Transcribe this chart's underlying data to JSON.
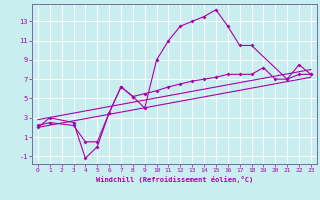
{
  "xlabel": "Windchill (Refroidissement éolien,°C)",
  "bg_color": "#c8eef0",
  "line_color": "#aa00aa",
  "line1_x": [
    0,
    1,
    3,
    4,
    5,
    6,
    7,
    8,
    9,
    10,
    11,
    12,
    13,
    14,
    15,
    16,
    17,
    18,
    21,
    22,
    23
  ],
  "line1_y": [
    2.0,
    3.0,
    2.5,
    -1.2,
    0.0,
    3.5,
    6.2,
    5.2,
    4.0,
    9.0,
    11.0,
    12.5,
    13.0,
    13.5,
    14.2,
    12.5,
    10.5,
    10.5,
    7.0,
    8.5,
    7.5
  ],
  "line2_x": [
    0,
    1,
    3,
    4,
    5,
    6,
    7,
    8,
    9,
    10,
    11,
    12,
    13,
    14,
    15,
    16,
    17,
    18,
    19,
    20,
    21,
    22,
    23
  ],
  "line2_y": [
    2.2,
    2.5,
    2.2,
    0.5,
    0.5,
    3.5,
    6.2,
    5.2,
    5.5,
    5.8,
    6.2,
    6.5,
    6.8,
    7.0,
    7.2,
    7.5,
    7.5,
    7.5,
    8.2,
    7.0,
    7.0,
    7.5,
    7.5
  ],
  "trend1_x": [
    0,
    23
  ],
  "trend1_y": [
    2.0,
    7.2
  ],
  "trend2_x": [
    0,
    23
  ],
  "trend2_y": [
    2.8,
    8.0
  ],
  "xlim": [
    -0.5,
    23.5
  ],
  "ylim": [
    -1.8,
    14.8
  ],
  "yticks": [
    -1,
    1,
    3,
    5,
    7,
    9,
    11,
    13
  ],
  "xticks": [
    0,
    1,
    2,
    3,
    4,
    5,
    6,
    7,
    8,
    9,
    10,
    11,
    12,
    13,
    14,
    15,
    16,
    17,
    18,
    19,
    20,
    21,
    22,
    23
  ]
}
